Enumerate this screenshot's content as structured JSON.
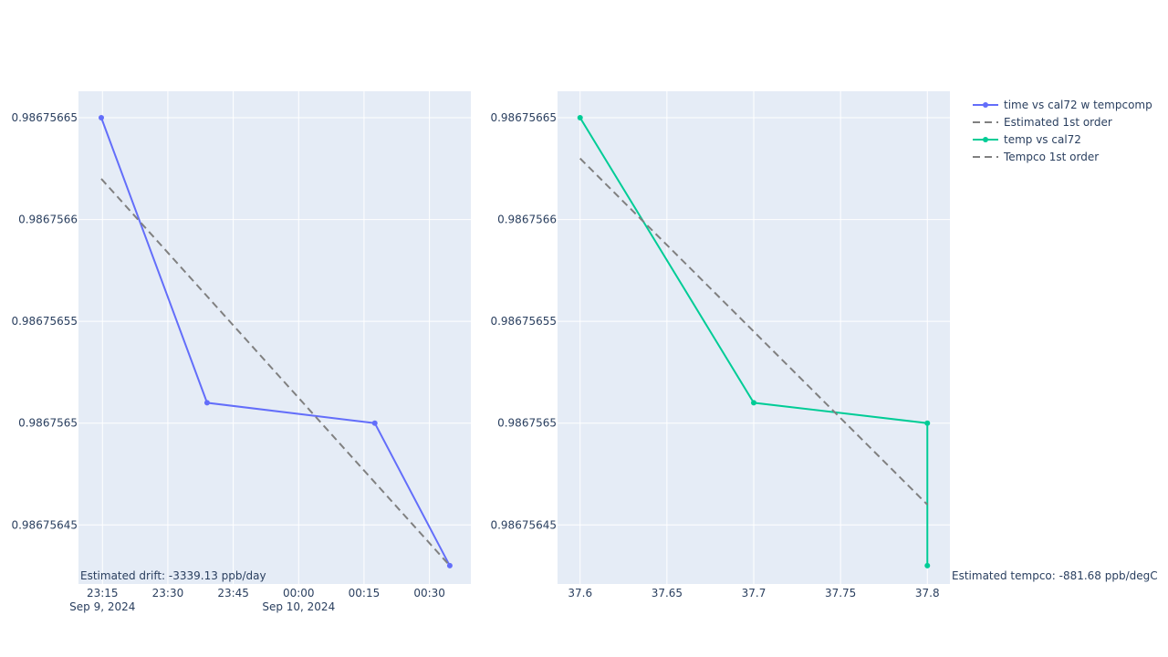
{
  "chart_data": [
    {
      "type": "line",
      "xaxis_type": "date",
      "xlim": [
        "2024-09-09 23:09:30",
        "2024-09-10 00:39:30"
      ],
      "ylim": [
        0.986756421,
        0.986756663
      ],
      "x_tick_labels": [
        {
          "x": "2024-09-09 23:15",
          "label": "23:15",
          "sub": "Sep 9, 2024"
        },
        {
          "x": "2024-09-09 23:30",
          "label": "23:30",
          "sub": ""
        },
        {
          "x": "2024-09-09 23:45",
          "label": "23:45",
          "sub": ""
        },
        {
          "x": "2024-09-10 00:00",
          "label": "00:00",
          "sub": "Sep 10, 2024"
        },
        {
          "x": "2024-09-10 00:15",
          "label": "00:15",
          "sub": ""
        },
        {
          "x": "2024-09-10 00:30",
          "label": "00:30",
          "sub": ""
        }
      ],
      "y_ticks": [
        {
          "value": 0.98675645,
          "label": "0.98675645"
        },
        {
          "value": 0.9867565,
          "label": "0.9867565"
        },
        {
          "value": 0.98675655,
          "label": "0.98675655"
        },
        {
          "value": 0.9867566,
          "label": "0.9867566"
        },
        {
          "value": 0.98675665,
          "label": "0.98675665"
        }
      ],
      "series": [
        {
          "name": "time vs cal72 w tempcomp",
          "color": "#636efa",
          "mode": "lines+markers",
          "dash": "solid",
          "x": [
            "2024-09-09 23:14:44",
            "2024-09-09 23:39:00",
            "2024-09-10 00:17:28",
            "2024-09-10 00:34:40"
          ],
          "y": [
            0.98675665,
            0.98675651,
            0.9867565,
            0.98675643
          ]
        },
        {
          "name": "Estimated 1st order",
          "color": "#808080",
          "mode": "lines",
          "dash": "dash",
          "x": [
            "2024-09-09 23:14:44",
            "2024-09-10 00:34:40"
          ],
          "y": [
            0.98675662,
            0.98675643
          ]
        }
      ],
      "annotation": "Estimated drift:  -3339.13 ppb/day"
    },
    {
      "type": "line",
      "xaxis_type": "linear",
      "xlim": [
        37.587,
        37.813
      ],
      "ylim": [
        0.986756421,
        0.986756663
      ],
      "x_tick_labels": [
        {
          "x": 37.6,
          "label": "37.6"
        },
        {
          "x": 37.65,
          "label": "37.65"
        },
        {
          "x": 37.7,
          "label": "37.7"
        },
        {
          "x": 37.75,
          "label": "37.75"
        },
        {
          "x": 37.8,
          "label": "37.8"
        }
      ],
      "y_ticks": [
        {
          "value": 0.98675645,
          "label": "0.98675645"
        },
        {
          "value": 0.9867565,
          "label": "0.9867565"
        },
        {
          "value": 0.98675655,
          "label": "0.98675655"
        },
        {
          "value": 0.9867566,
          "label": "0.9867566"
        },
        {
          "value": 0.98675665,
          "label": "0.98675665"
        }
      ],
      "series": [
        {
          "name": "temp vs cal72",
          "color": "#00cc96",
          "mode": "lines+markers",
          "dash": "solid",
          "x": [
            37.6,
            37.7,
            37.8,
            37.8
          ],
          "y": [
            0.98675665,
            0.98675651,
            0.9867565,
            0.98675643
          ]
        },
        {
          "name": "Tempco 1st order",
          "color": "#808080",
          "mode": "lines",
          "dash": "dash",
          "x": [
            37.6,
            37.8
          ],
          "y": [
            0.98675663,
            0.98675646
          ]
        }
      ],
      "annotation": "Estimated tempco:  -881.68 ppb/degC"
    }
  ],
  "colors": {
    "plot_bg": "#e5ecf6",
    "grid": "#ffffff",
    "text": "#2a3f5f"
  },
  "legend": {
    "placement": "top-right"
  }
}
